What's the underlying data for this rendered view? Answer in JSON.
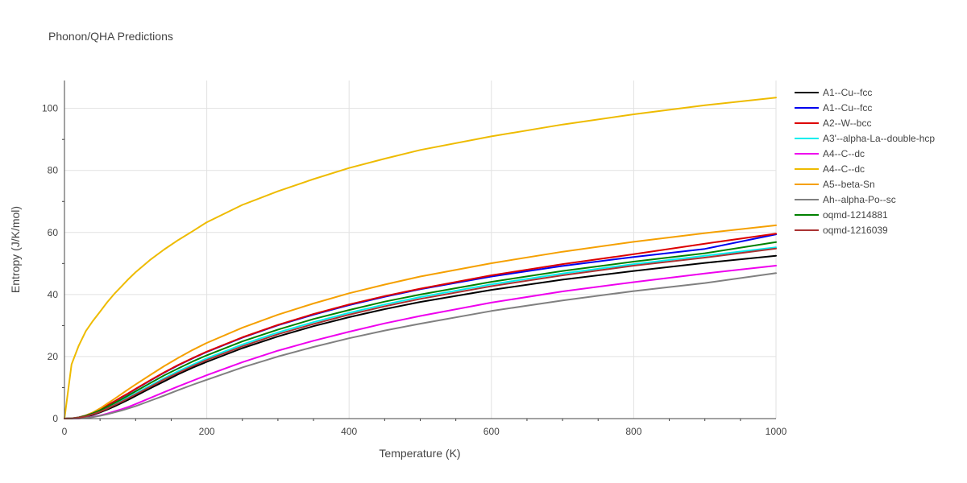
{
  "chart_data": {
    "type": "line",
    "title": "Phonon/QHA Predictions",
    "xlabel": "Temperature (K)",
    "ylabel": "Entropy (J/K/mol)",
    "xlim": [
      0,
      1000
    ],
    "ylim": [
      0,
      109
    ],
    "xticks": [
      0,
      200,
      400,
      600,
      800,
      1000
    ],
    "yticks": [
      0,
      20,
      40,
      60,
      80,
      100
    ],
    "grid": true,
    "legend_position": "right",
    "x": [
      0,
      10,
      20,
      30,
      40,
      50,
      60,
      70,
      80,
      90,
      100,
      120,
      140,
      160,
      180,
      200,
      250,
      300,
      350,
      400,
      450,
      500,
      600,
      700,
      800,
      900,
      1000
    ],
    "series": [
      {
        "name": "A1--Cu--fcc",
        "color": "#000000",
        "values": [
          0,
          0.05,
          0.2,
          0.6,
          1.2,
          2.0,
          2.9,
          3.9,
          5.0,
          6.1,
          7.3,
          9.7,
          12.0,
          14.3,
          16.4,
          18.3,
          22.7,
          26.5,
          29.8,
          32.7,
          35.3,
          37.6,
          41.5,
          44.8,
          47.6,
          50.2,
          52.5
        ]
      },
      {
        "name": "A1--Cu--fcc",
        "color": "#0000ee",
        "values": [
          0,
          0.08,
          0.4,
          1.0,
          1.9,
          3.0,
          4.2,
          5.5,
          6.8,
          8.1,
          9.5,
          12.2,
          14.8,
          17.2,
          19.4,
          21.5,
          26.1,
          30.1,
          33.5,
          36.6,
          39.3,
          41.7,
          45.8,
          49.2,
          52.1,
          54.7,
          59.4
        ]
      },
      {
        "name": "A2--W--bcc",
        "color": "#dd0000",
        "values": [
          0,
          0.08,
          0.4,
          1.0,
          1.9,
          3.0,
          4.2,
          5.5,
          6.9,
          8.2,
          9.6,
          12.3,
          14.9,
          17.3,
          19.5,
          21.6,
          26.2,
          30.2,
          33.7,
          36.8,
          39.5,
          41.9,
          46.2,
          49.8,
          53.0,
          56.4,
          59.6
        ]
      },
      {
        "name": "A3'--alpha-La--double-hcp",
        "color": "#00eeee",
        "values": [
          0,
          0.06,
          0.3,
          0.8,
          1.5,
          2.4,
          3.4,
          4.5,
          5.7,
          6.9,
          8.1,
          10.6,
          13.0,
          15.3,
          17.4,
          19.4,
          23.9,
          27.8,
          31.1,
          34.1,
          36.8,
          39.2,
          43.3,
          46.8,
          49.8,
          52.5,
          55.2
        ]
      },
      {
        "name": "A4--C--dc",
        "color": "#ee00ee",
        "values": [
          0,
          0.02,
          0.08,
          0.25,
          0.6,
          1.0,
          1.6,
          2.3,
          3.0,
          3.8,
          4.7,
          6.6,
          8.5,
          10.4,
          12.2,
          14.0,
          18.2,
          21.9,
          25.1,
          28.0,
          30.7,
          33.1,
          37.4,
          41.0,
          44.0,
          46.8,
          49.3
        ]
      },
      {
        "name": "A4--C--dc",
        "color": "#eebb00",
        "values": [
          0,
          17.5,
          23.5,
          28.2,
          31.5,
          34.5,
          37.5,
          40.2,
          42.6,
          45.0,
          47.2,
          51.1,
          54.5,
          57.6,
          60.4,
          63.3,
          68.9,
          73.3,
          77.2,
          80.8,
          83.8,
          86.6,
          91.0,
          94.8,
          98.1,
          101.0,
          103.5
        ]
      },
      {
        "name": "A5--beta-Sn",
        "color": "#f5a000",
        "values": [
          0,
          0.08,
          0.3,
          1.0,
          2.0,
          3.3,
          4.8,
          6.3,
          7.9,
          9.5,
          11.0,
          14.0,
          16.9,
          19.6,
          22.1,
          24.4,
          29.3,
          33.5,
          37.1,
          40.4,
          43.2,
          45.8,
          50.1,
          53.8,
          57.0,
          59.8,
          62.3
        ]
      },
      {
        "name": "Ah--alpha-Po--sc",
        "color": "#808080",
        "values": [
          0,
          0.02,
          0.08,
          0.25,
          0.5,
          0.9,
          1.4,
          2.0,
          2.6,
          3.3,
          4.0,
          5.7,
          7.4,
          9.2,
          10.9,
          12.5,
          16.5,
          20.0,
          23.1,
          25.9,
          28.4,
          30.6,
          34.7,
          38.1,
          41.1,
          43.7,
          46.9
        ]
      },
      {
        "name": "oqmd-1214881",
        "color": "#008000",
        "values": [
          0,
          0.07,
          0.35,
          0.9,
          1.7,
          2.7,
          3.8,
          5.0,
          6.2,
          7.5,
          8.8,
          11.4,
          13.9,
          16.2,
          18.4,
          20.4,
          24.9,
          28.7,
          32.1,
          35.0,
          37.7,
          40.0,
          44.1,
          47.6,
          50.6,
          53.3,
          56.9
        ]
      },
      {
        "name": "oqmd-1216039",
        "color": "#aa3333",
        "values": [
          0,
          0.05,
          0.25,
          0.7,
          1.4,
          2.2,
          3.2,
          4.3,
          5.4,
          6.6,
          7.8,
          10.2,
          12.6,
          14.8,
          16.9,
          18.9,
          23.3,
          27.2,
          30.5,
          33.5,
          36.2,
          38.6,
          42.7,
          46.2,
          49.3,
          51.9,
          54.8
        ]
      }
    ]
  }
}
